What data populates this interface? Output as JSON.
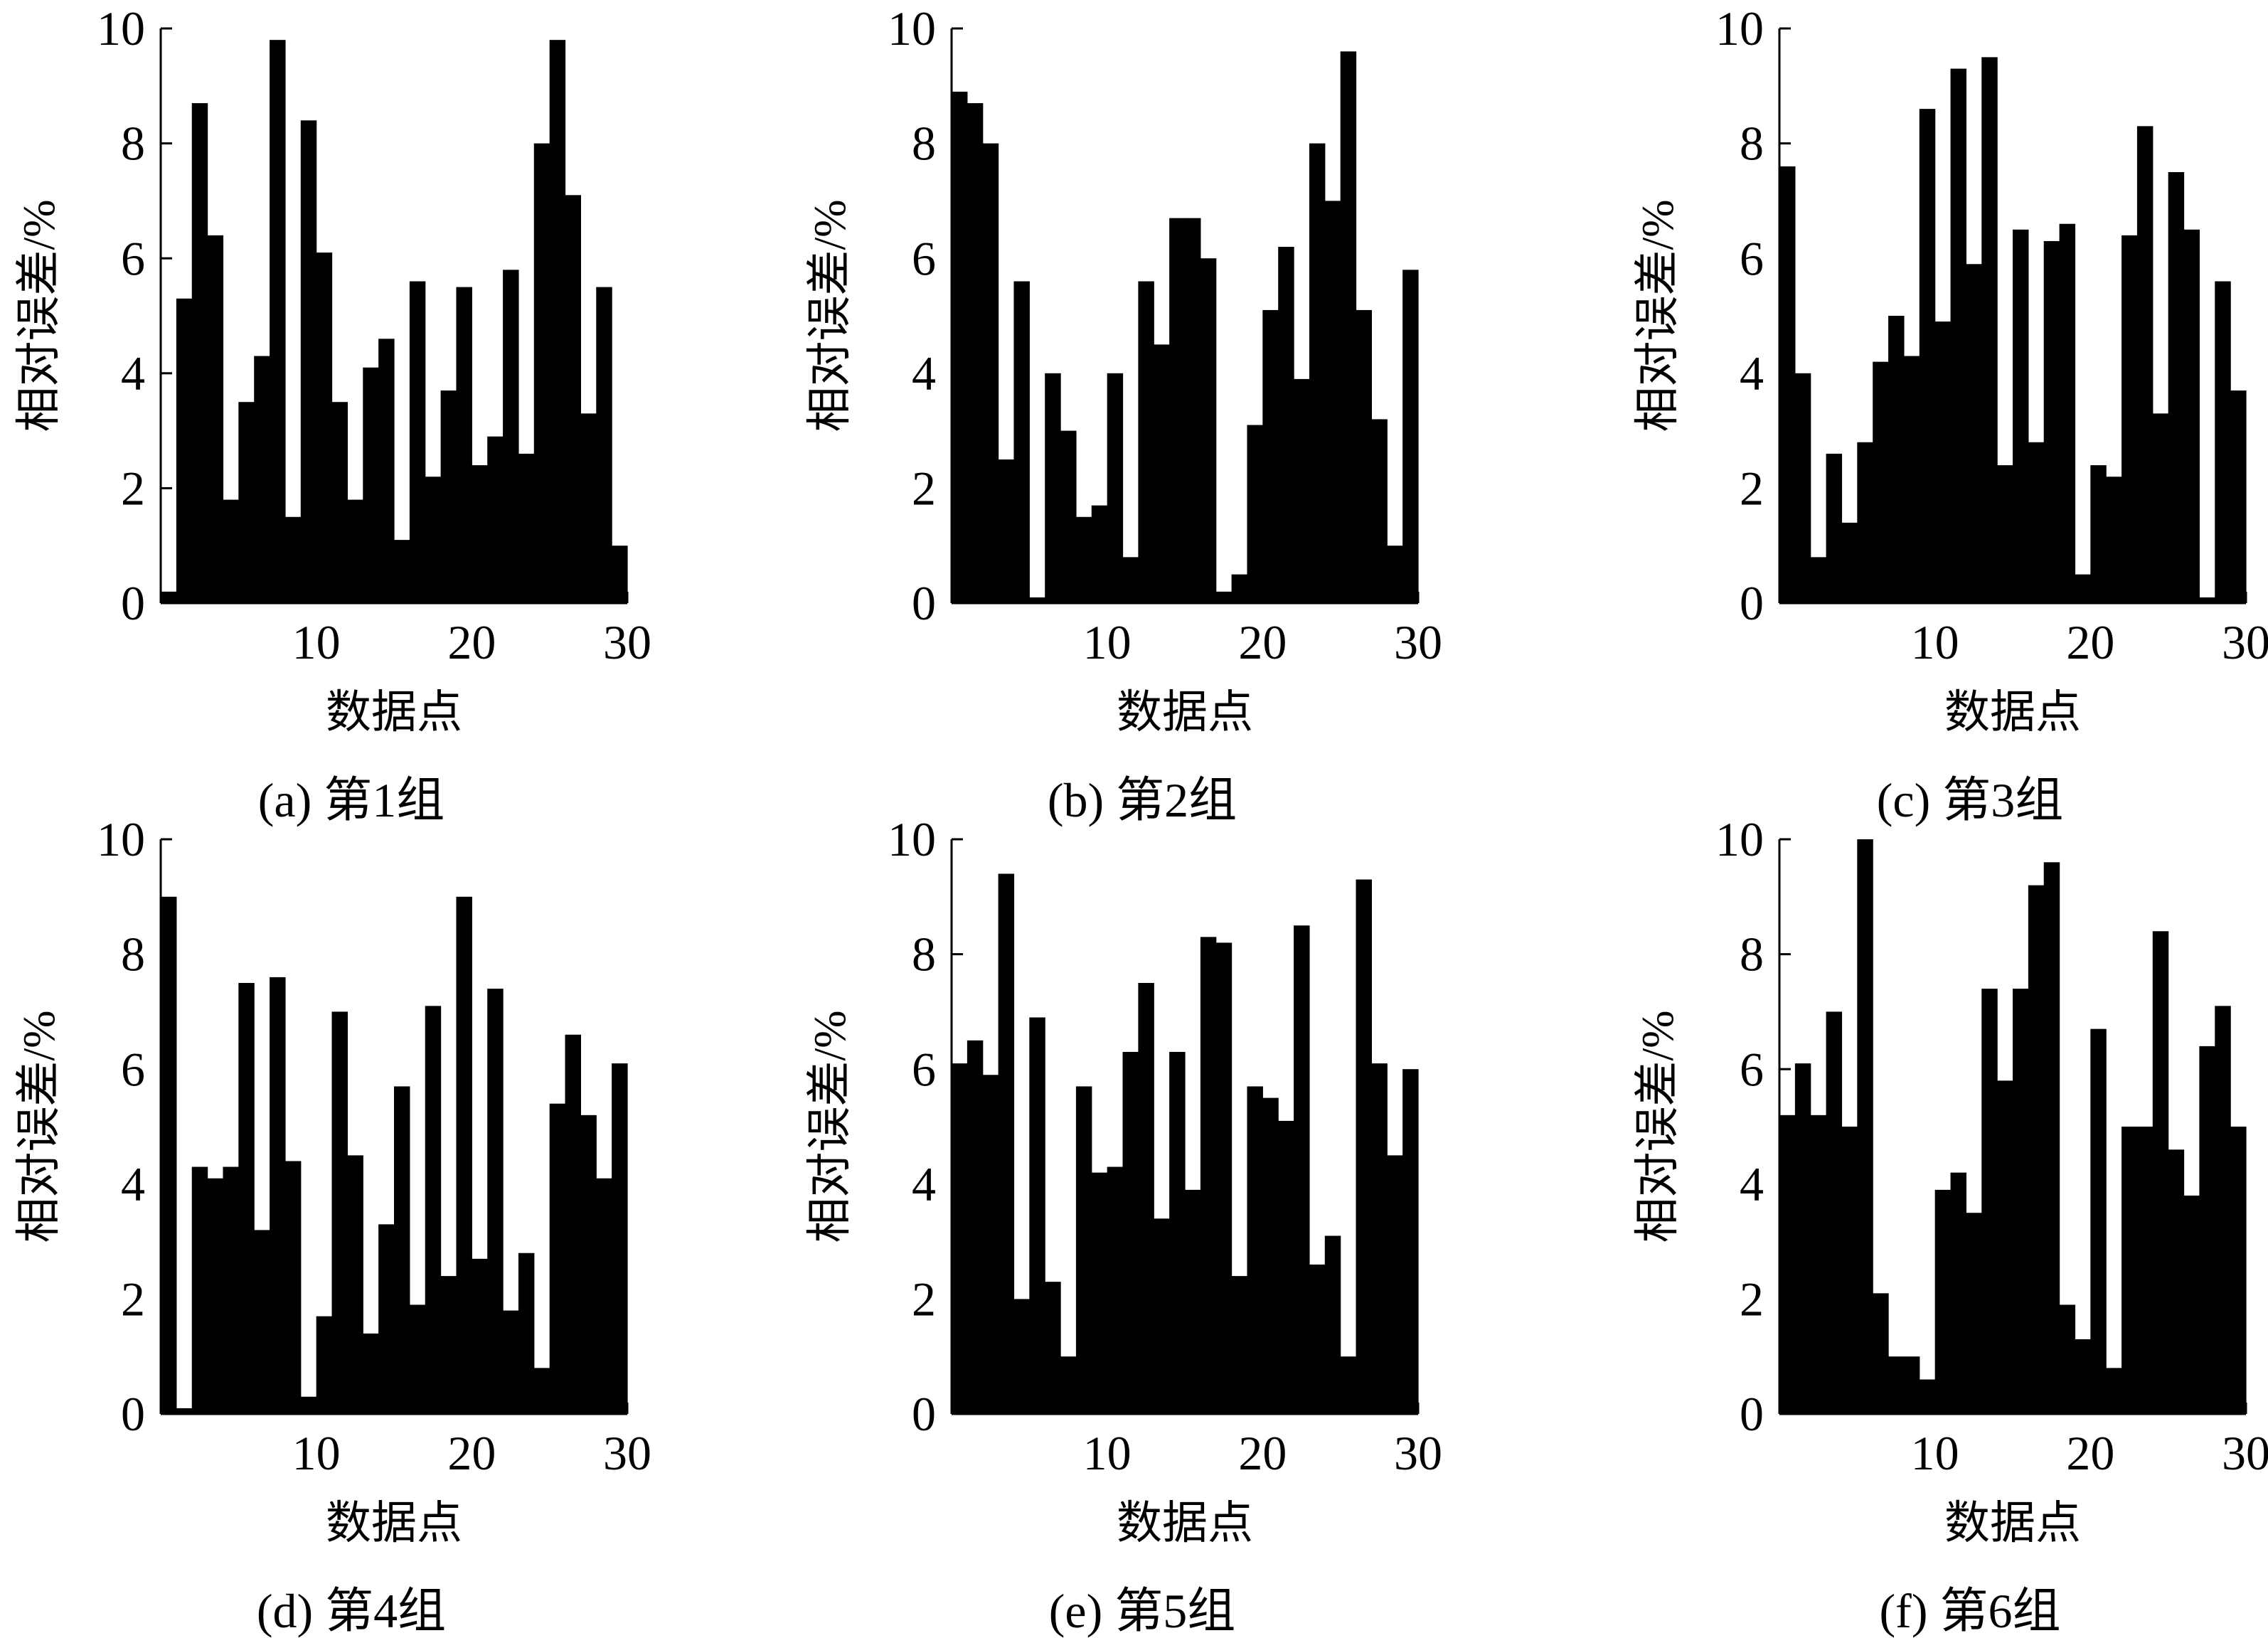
{
  "chart_data": [
    {
      "type": "bar",
      "caption": "(a) 第1组",
      "xlabel": "数据点",
      "ylabel": "相对误差/%",
      "xlim": [
        0,
        30
      ],
      "ylim": [
        0,
        10
      ],
      "xticks": [
        10,
        20,
        30
      ],
      "yticks": [
        0,
        2,
        4,
        6,
        8,
        10
      ],
      "x": [
        1,
        2,
        3,
        4,
        5,
        6,
        7,
        8,
        9,
        10,
        11,
        12,
        13,
        14,
        15,
        16,
        17,
        18,
        19,
        20,
        21,
        22,
        23,
        24,
        25,
        26,
        27,
        28,
        29,
        30
      ],
      "values": [
        0.2,
        5.3,
        8.7,
        6.4,
        1.8,
        3.5,
        4.3,
        9.8,
        1.5,
        8.4,
        6.1,
        3.5,
        1.8,
        4.1,
        4.6,
        1.1,
        5.6,
        2.2,
        3.7,
        5.5,
        2.4,
        2.9,
        5.8,
        2.6,
        8.0,
        9.8,
        7.1,
        3.3,
        5.5,
        1.0
      ]
    },
    {
      "type": "bar",
      "caption": "(b) 第2组",
      "xlabel": "数据点",
      "ylabel": "相对误差/%",
      "xlim": [
        0,
        30
      ],
      "ylim": [
        0,
        10
      ],
      "xticks": [
        10,
        20,
        30
      ],
      "yticks": [
        0,
        2,
        4,
        6,
        8,
        10
      ],
      "x": [
        1,
        2,
        3,
        4,
        5,
        6,
        7,
        8,
        9,
        10,
        11,
        12,
        13,
        14,
        15,
        16,
        17,
        18,
        19,
        20,
        21,
        22,
        23,
        24,
        25,
        26,
        27,
        28,
        29,
        30
      ],
      "values": [
        8.9,
        8.7,
        8.0,
        2.5,
        5.6,
        0.1,
        4.0,
        3.0,
        1.5,
        1.7,
        4.0,
        0.8,
        5.6,
        4.5,
        6.7,
        6.7,
        6.0,
        0.2,
        0.5,
        3.1,
        5.1,
        6.2,
        3.9,
        8.0,
        7.0,
        9.6,
        5.1,
        3.2,
        1.0,
        5.8
      ]
    },
    {
      "type": "bar",
      "caption": "(c) 第3组",
      "xlabel": "数据点",
      "ylabel": "相对误差/%",
      "xlim": [
        0,
        30
      ],
      "ylim": [
        0,
        10
      ],
      "xticks": [
        10,
        20,
        30
      ],
      "yticks": [
        0,
        2,
        4,
        6,
        8,
        10
      ],
      "x": [
        1,
        2,
        3,
        4,
        5,
        6,
        7,
        8,
        9,
        10,
        11,
        12,
        13,
        14,
        15,
        16,
        17,
        18,
        19,
        20,
        21,
        22,
        23,
        24,
        25,
        26,
        27,
        28,
        29,
        30
      ],
      "values": [
        7.6,
        4.0,
        0.8,
        2.6,
        1.4,
        2.8,
        4.2,
        5.0,
        4.3,
        8.6,
        4.9,
        9.3,
        5.9,
        9.5,
        2.4,
        6.5,
        2.8,
        6.3,
        6.6,
        0.5,
        2.4,
        2.2,
        6.4,
        8.3,
        3.3,
        7.5,
        6.5,
        0.1,
        5.6,
        3.7
      ]
    },
    {
      "type": "bar",
      "caption": "(d) 第4组",
      "xlabel": "数据点",
      "ylabel": "相对误差/%",
      "xlim": [
        0,
        30
      ],
      "ylim": [
        0,
        10
      ],
      "xticks": [
        10,
        20,
        30
      ],
      "yticks": [
        0,
        2,
        4,
        6,
        8,
        10
      ],
      "x": [
        1,
        2,
        3,
        4,
        5,
        6,
        7,
        8,
        9,
        10,
        11,
        12,
        13,
        14,
        15,
        16,
        17,
        18,
        19,
        20,
        21,
        22,
        23,
        24,
        25,
        26,
        27,
        28,
        29,
        30
      ],
      "values": [
        9.0,
        0.1,
        4.3,
        4.1,
        4.3,
        7.5,
        3.2,
        7.6,
        4.4,
        0.3,
        1.7,
        7.0,
        4.5,
        1.4,
        3.3,
        5.7,
        1.9,
        7.1,
        2.4,
        9.0,
        2.7,
        7.4,
        1.8,
        2.8,
        0.8,
        5.4,
        6.6,
        5.2,
        4.1,
        6.1
      ]
    },
    {
      "type": "bar",
      "caption": "(e) 第5组",
      "xlabel": "数据点",
      "ylabel": "相对误差/%",
      "xlim": [
        0,
        30
      ],
      "ylim": [
        0,
        10
      ],
      "xticks": [
        10,
        20,
        30
      ],
      "yticks": [
        0,
        2,
        4,
        6,
        8,
        10
      ],
      "x": [
        1,
        2,
        3,
        4,
        5,
        6,
        7,
        8,
        9,
        10,
        11,
        12,
        13,
        14,
        15,
        16,
        17,
        18,
        19,
        20,
        21,
        22,
        23,
        24,
        25,
        26,
        27,
        28,
        29,
        30
      ],
      "values": [
        6.1,
        6.5,
        5.9,
        9.4,
        2.0,
        6.9,
        2.3,
        1.0,
        5.7,
        4.2,
        4.3,
        6.3,
        7.5,
        3.4,
        6.3,
        3.9,
        8.3,
        8.2,
        2.4,
        5.7,
        5.5,
        5.1,
        8.5,
        2.6,
        3.1,
        1.0,
        9.3,
        6.1,
        4.5,
        6.0
      ]
    },
    {
      "type": "bar",
      "caption": "(f) 第6组",
      "xlabel": "数据点",
      "ylabel": "相对误差/%",
      "xlim": [
        0,
        30
      ],
      "ylim": [
        0,
        10
      ],
      "xticks": [
        10,
        20,
        30
      ],
      "yticks": [
        0,
        2,
        4,
        6,
        8,
        10
      ],
      "x": [
        1,
        2,
        3,
        4,
        5,
        6,
        7,
        8,
        9,
        10,
        11,
        12,
        13,
        14,
        15,
        16,
        17,
        18,
        19,
        20,
        21,
        22,
        23,
        24,
        25,
        26,
        27,
        28,
        29,
        30
      ],
      "values": [
        5.2,
        6.1,
        5.2,
        7.0,
        5.0,
        10.0,
        2.1,
        1.0,
        1.0,
        0.6,
        3.9,
        4.2,
        3.5,
        7.4,
        5.8,
        7.4,
        9.2,
        9.6,
        1.9,
        1.3,
        6.7,
        0.8,
        5.0,
        5.0,
        8.4,
        4.6,
        3.8,
        6.4,
        7.1,
        5.0
      ]
    }
  ]
}
